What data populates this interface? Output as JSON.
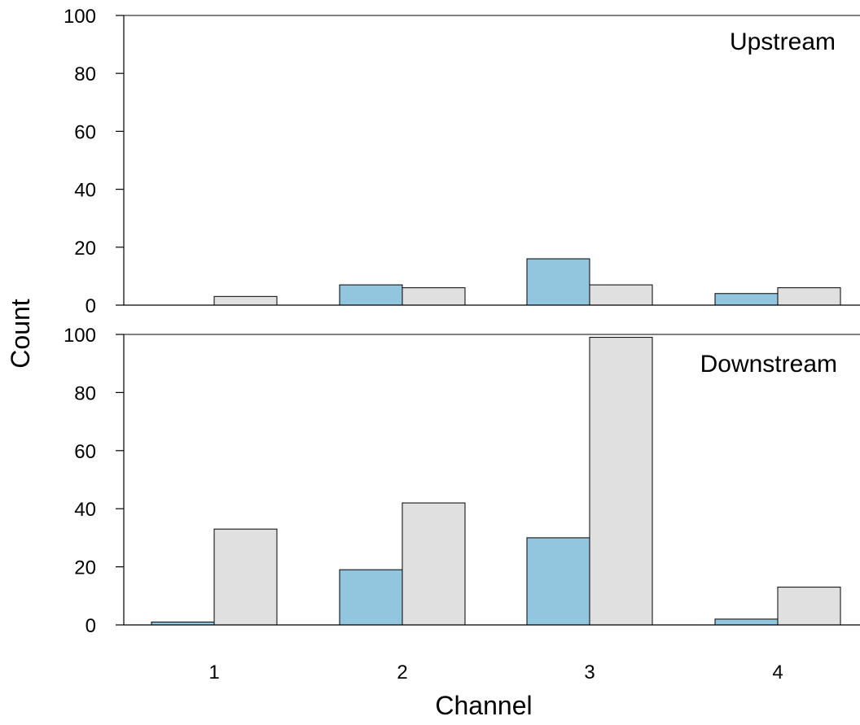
{
  "chart_data": {
    "type": "bar",
    "xlabel": "Channel",
    "ylabel": "Count",
    "categories": [
      "1",
      "2",
      "3",
      "4"
    ],
    "ylim": [
      0,
      100
    ],
    "yticks": [
      "0",
      "20",
      "40",
      "60",
      "80",
      "100"
    ],
    "colors": {
      "series_a": "#92c5de",
      "series_b": "#e0e0e0"
    },
    "panels": [
      {
        "label": "Upstream",
        "series": [
          {
            "values": [
              0,
              7,
              16,
              4
            ]
          },
          {
            "values": [
              3,
              6,
              7,
              6
            ]
          }
        ]
      },
      {
        "label": "Downstream",
        "series": [
          {
            "values": [
              1,
              19,
              30,
              2
            ]
          },
          {
            "values": [
              33,
              42,
              99,
              13
            ]
          }
        ]
      }
    ]
  }
}
